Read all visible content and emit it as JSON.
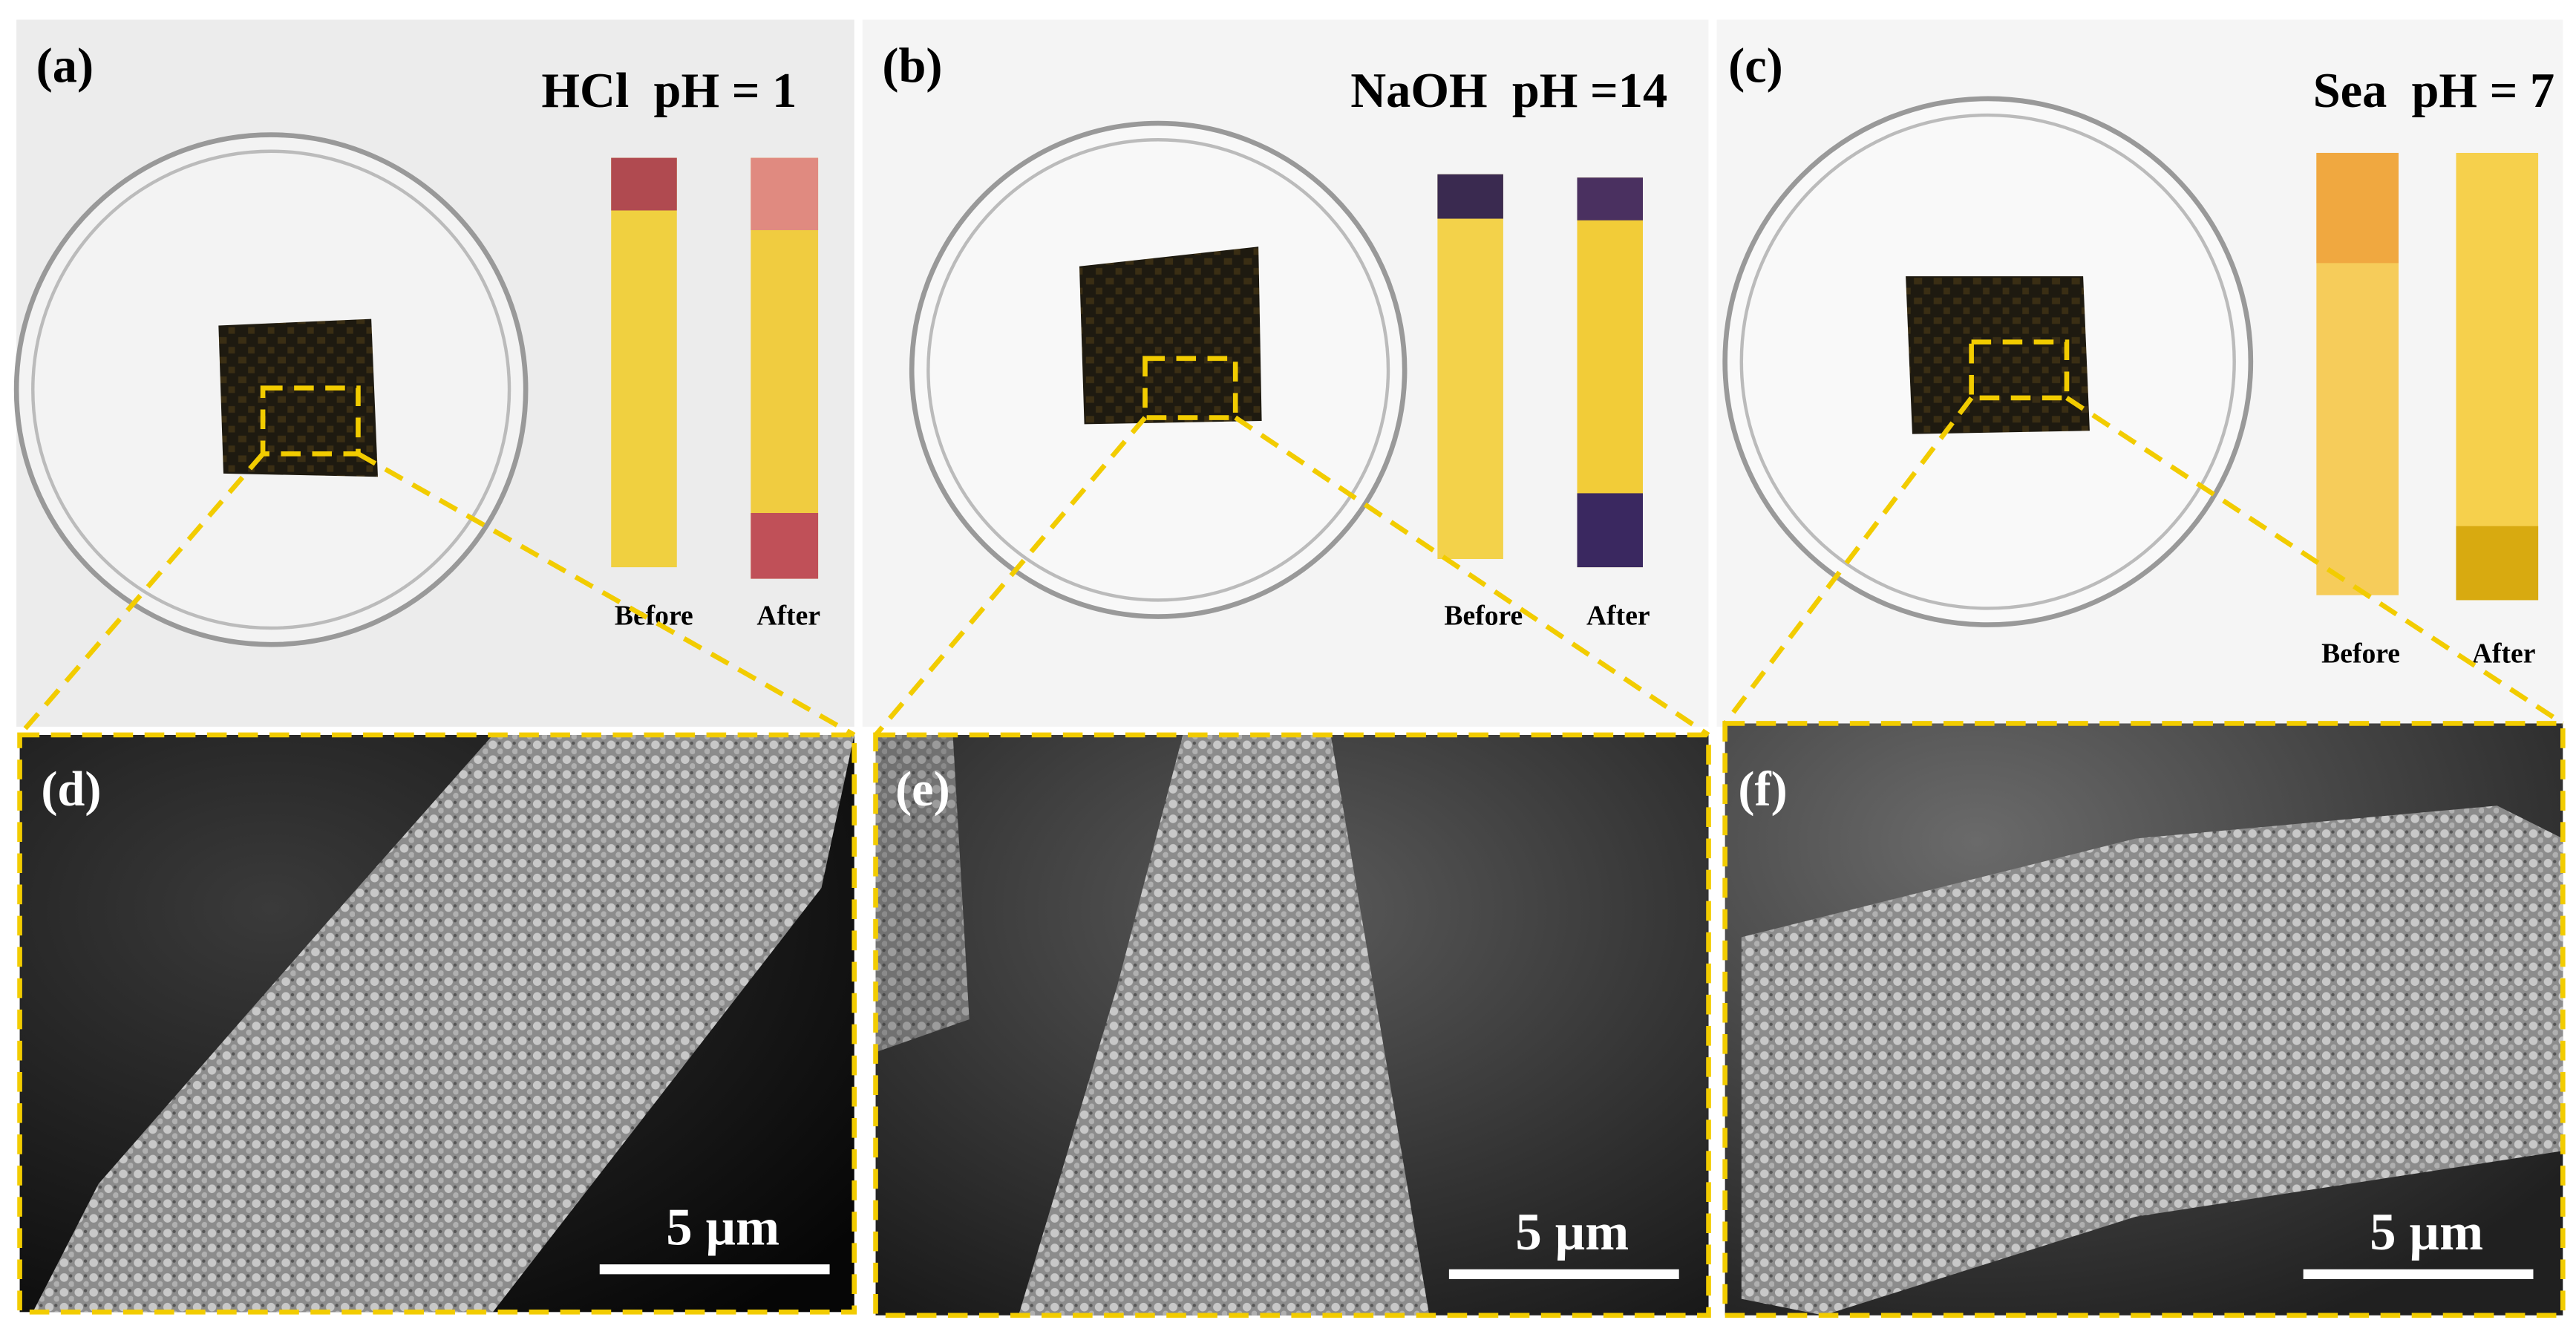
{
  "panels": [
    {
      "label": "(a)",
      "title": "HCl  pH = 1",
      "strips": [
        "Before",
        "After"
      ]
    },
    {
      "label": "(b)",
      "title": "NaOH  pH =14",
      "strips": [
        "Before",
        "After"
      ]
    },
    {
      "label": "(c)",
      "title": "Sea  pH = 7",
      "strips": [
        "Before",
        "After"
      ]
    }
  ],
  "sem": [
    {
      "label": "(d)",
      "scale_bar": "5 µm"
    },
    {
      "label": "(e)",
      "scale_bar": "5 µm"
    },
    {
      "label": "(f)",
      "scale_bar": "5 µm"
    }
  ]
}
